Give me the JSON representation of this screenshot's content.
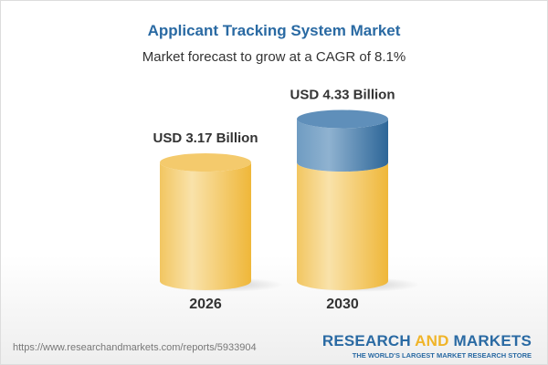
{
  "title": "Applicant Tracking System Market",
  "subtitle": "Market forecast to grow at a CAGR of 8.1%",
  "chart_data": {
    "type": "bar",
    "style": "3d-cylinder",
    "categories": [
      "2026",
      "2030"
    ],
    "values": [
      3.17,
      4.33
    ],
    "data_labels": [
      "USD 3.17 Billion",
      "USD 4.33 Billion"
    ],
    "unit": "USD Billion",
    "colors": {
      "base": "#f3c358",
      "growth": "#4f87b5"
    }
  },
  "footer": {
    "url": "https://www.researchandmarkets.com/reports/5933904",
    "logo_part1": "RESEARCH ",
    "logo_part2": "AND",
    "logo_part3": " MARKETS",
    "tagline": "THE WORLD'S LARGEST MARKET RESEARCH STORE"
  }
}
